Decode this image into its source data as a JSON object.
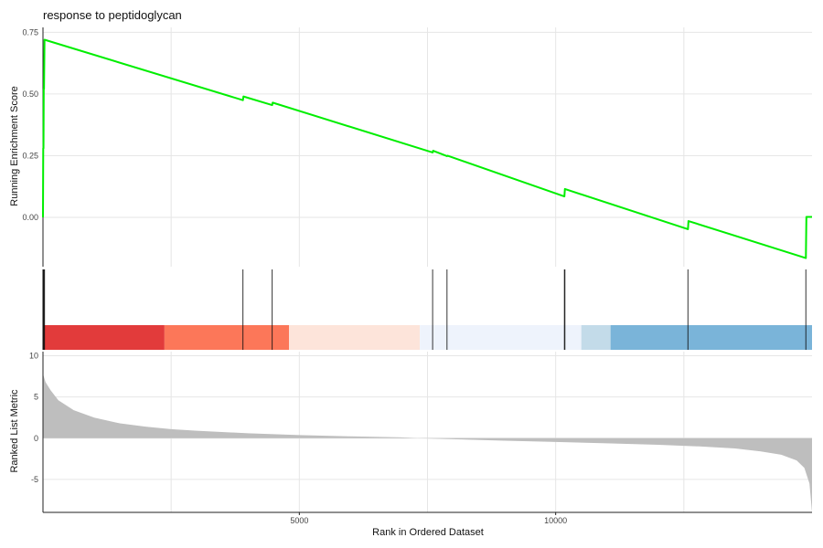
{
  "chart_data": {
    "type": "line",
    "title": "response to peptidoglycan",
    "xlabel": "Rank in Ordered Dataset",
    "xlim": [
      0,
      15000
    ],
    "xticks": [
      5000,
      10000
    ],
    "xtick_labels": [
      "5000",
      "10000"
    ],
    "panels": [
      {
        "name": "running_enrichment",
        "ylabel": "Running Enrichment Score",
        "ylim": [
          -0.2,
          0.77
        ],
        "yticks": [
          0.0,
          0.25,
          0.5,
          0.75
        ],
        "ytick_labels": [
          "0.00",
          "0.25",
          "0.50",
          "0.75"
        ],
        "color": "#00ee00",
        "points": [
          [
            0,
            0.0
          ],
          [
            5,
            0.28
          ],
          [
            10,
            0.28
          ],
          [
            15,
            0.52
          ],
          [
            20,
            0.52
          ],
          [
            30,
            0.72
          ],
          [
            3900,
            0.475
          ],
          [
            3910,
            0.49
          ],
          [
            4470,
            0.455
          ],
          [
            4480,
            0.465
          ],
          [
            7600,
            0.263
          ],
          [
            7610,
            0.27
          ],
          [
            7880,
            0.248
          ],
          [
            7890,
            0.25
          ],
          [
            10170,
            0.085
          ],
          [
            10180,
            0.115
          ],
          [
            12580,
            -0.048
          ],
          [
            12590,
            -0.015
          ],
          [
            14880,
            -0.165
          ],
          [
            14890,
            0.002
          ],
          [
            15000,
            0.002
          ]
        ]
      },
      {
        "name": "ranked_list_metric",
        "ylabel": "Ranked List Metric",
        "ylim": [
          -9,
          10.5
        ],
        "yticks": [
          -5,
          0,
          5,
          10
        ],
        "ytick_labels": [
          "-5",
          "0",
          "5",
          "10"
        ],
        "fill_color": "#bebebe",
        "points": [
          [
            0,
            7.8
          ],
          [
            50,
            6.8
          ],
          [
            150,
            5.8
          ],
          [
            300,
            4.6
          ],
          [
            600,
            3.4
          ],
          [
            1000,
            2.5
          ],
          [
            1500,
            1.8
          ],
          [
            2000,
            1.4
          ],
          [
            2500,
            1.1
          ],
          [
            3000,
            0.9
          ],
          [
            4000,
            0.6
          ],
          [
            5000,
            0.38
          ],
          [
            6000,
            0.22
          ],
          [
            7000,
            0.1
          ],
          [
            7300,
            0.0
          ],
          [
            8000,
            -0.12
          ],
          [
            9000,
            -0.3
          ],
          [
            10000,
            -0.46
          ],
          [
            11000,
            -0.62
          ],
          [
            12000,
            -0.8
          ],
          [
            12800,
            -1.0
          ],
          [
            13500,
            -1.25
          ],
          [
            14000,
            -1.6
          ],
          [
            14400,
            -2.0
          ],
          [
            14700,
            -2.7
          ],
          [
            14850,
            -3.6
          ],
          [
            14950,
            -5.5
          ],
          [
            15000,
            -9.0
          ]
        ]
      }
    ],
    "gene_hits": [
      0,
      10,
      20,
      30,
      3900,
      4470,
      7600,
      7880,
      10170,
      10180,
      12580,
      14880
    ],
    "color_bands": [
      {
        "from": 0,
        "to": 2370,
        "color": "#e23b3b"
      },
      {
        "from": 2370,
        "to": 4800,
        "color": "#fc7759"
      },
      {
        "from": 4800,
        "to": 7350,
        "color": "#fde4da"
      },
      {
        "from": 7350,
        "to": 10500,
        "color": "#eef3fc"
      },
      {
        "from": 10500,
        "to": 11070,
        "color": "#c3dbe9"
      },
      {
        "from": 11070,
        "to": 15000,
        "color": "#7ab4d9"
      }
    ]
  }
}
